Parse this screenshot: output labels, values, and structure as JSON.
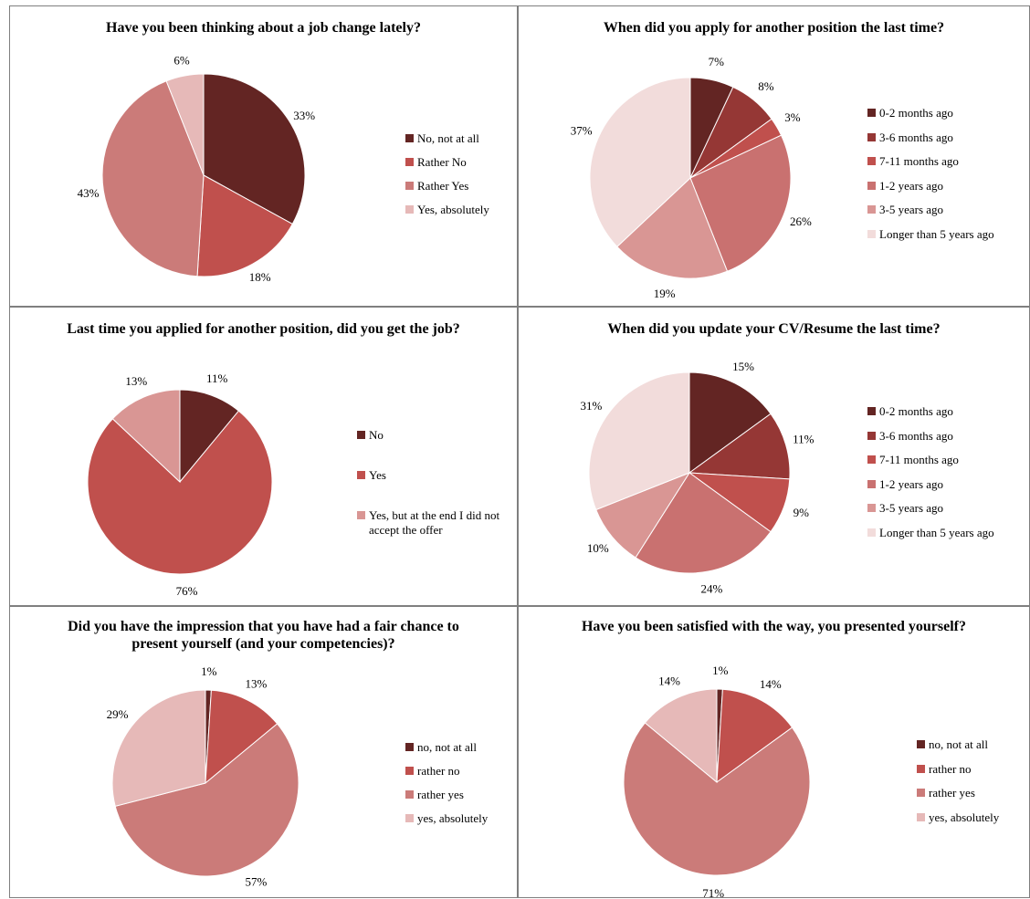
{
  "chart_data": [
    {
      "type": "pie",
      "title": "Have you been thinking about a job change lately?",
      "categories": [
        "No, not at all",
        "Rather No",
        "Rather Yes",
        "Yes, absolutely"
      ],
      "values": [
        33,
        18,
        43,
        6
      ],
      "labels": [
        "33%",
        "18%",
        "43%",
        "6%"
      ],
      "colors": [
        "#632523",
        "#c0504d",
        "#cb7b79",
        "#e6b9b8"
      ],
      "legend": "right"
    },
    {
      "type": "pie",
      "title": "When did you apply for another position the last time?",
      "categories": [
        "0-2 months ago",
        "3-6 months ago",
        "7-11 months ago",
        "1-2 years ago",
        "3-5 years ago",
        "Longer than 5 years ago"
      ],
      "values": [
        7,
        8,
        3,
        26,
        19,
        37
      ],
      "labels": [
        "7%",
        "8%",
        "3%",
        "26%",
        "19%",
        "37%"
      ],
      "colors": [
        "#632523",
        "#953735",
        "#c0504d",
        "#c97170",
        "#d99694",
        "#f2dcdb"
      ],
      "legend": "right"
    },
    {
      "type": "pie",
      "title": "Last time you applied for another position, did you get the job?",
      "categories": [
        "No",
        "Yes",
        "Yes, but at the end I did not accept the offer"
      ],
      "values": [
        11,
        76,
        13
      ],
      "labels": [
        "11%",
        "76%",
        "13%"
      ],
      "colors": [
        "#632523",
        "#c0504d",
        "#d99694"
      ],
      "legend": "right"
    },
    {
      "type": "pie",
      "title": "When did you update your CV/Resume the last time?",
      "categories": [
        "0-2 months ago",
        "3-6 months ago",
        "7-11 months ago",
        "1-2 years ago",
        "3-5 years ago",
        "Longer than 5 years ago"
      ],
      "values": [
        15,
        11,
        9,
        24,
        10,
        31
      ],
      "labels": [
        "15%",
        "11%",
        "9%",
        "24%",
        "10%",
        "31%"
      ],
      "colors": [
        "#632523",
        "#953735",
        "#c0504d",
        "#c97170",
        "#d99694",
        "#f2dcdb"
      ],
      "legend": "right"
    },
    {
      "type": "pie",
      "title": "Did you have the impression that you have had a fair chance to present yourself (and your competencies)?",
      "categories": [
        "no, not at all",
        "rather no",
        "rather yes",
        "yes, absolutely"
      ],
      "values": [
        1,
        13,
        57,
        29
      ],
      "labels": [
        "1%",
        "13%",
        "57%",
        "29%"
      ],
      "colors": [
        "#632523",
        "#c0504d",
        "#cb7b79",
        "#e6b9b8"
      ],
      "legend": "right"
    },
    {
      "type": "pie",
      "title": "Have you been satisfied with the way, you presented yourself?",
      "categories": [
        "no, not at all",
        "rather no",
        "rather yes",
        "yes, absolutely"
      ],
      "values": [
        1,
        14,
        71,
        14
      ],
      "labels": [
        "1%",
        "14%",
        "71%",
        "14%"
      ],
      "colors": [
        "#632523",
        "#c0504d",
        "#cb7b79",
        "#e6b9b8"
      ],
      "legend": "right"
    }
  ]
}
